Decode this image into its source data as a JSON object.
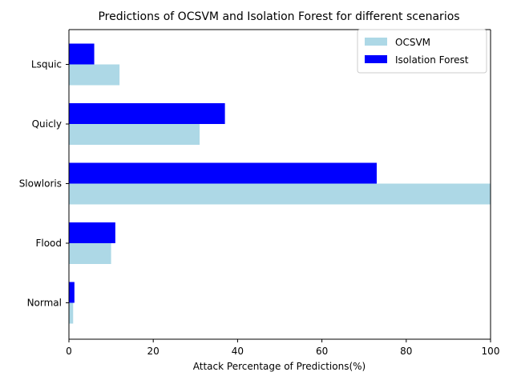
{
  "chart_data": {
    "type": "bar",
    "orientation": "horizontal",
    "title": "Predictions of OCSVM and Isolation Forest for different scenarios",
    "xlabel": "Attack Percentage of Predictions(%)",
    "ylabel": "",
    "categories": [
      "Normal",
      "Flood",
      "Slowloris",
      "Quicly",
      "Lsquic"
    ],
    "xlim": [
      0,
      100
    ],
    "xticks": [
      0,
      20,
      40,
      60,
      80,
      100
    ],
    "grid": false,
    "legend_position": "top-right",
    "series": [
      {
        "name": "OCSVM",
        "color": "#add8e6",
        "values": [
          1,
          10,
          100,
          31,
          12
        ]
      },
      {
        "name": "Isolation Forest",
        "color": "#0000ff",
        "values": [
          1.3,
          11,
          73,
          37,
          6
        ]
      }
    ]
  }
}
